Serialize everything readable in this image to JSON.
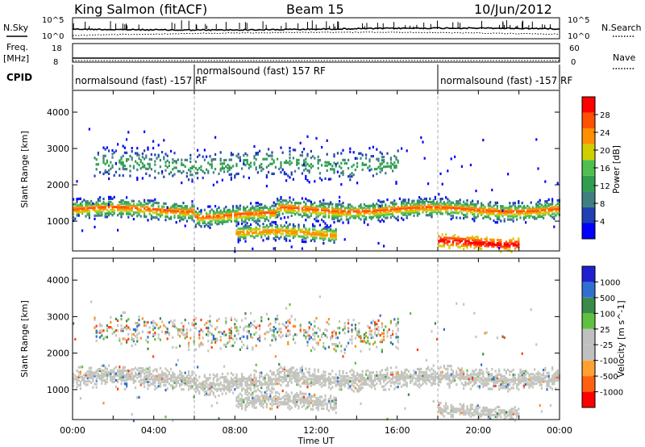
{
  "header": {
    "title": "King Salmon (fitACF)",
    "beam": "Beam 15",
    "date": "10/Jun/2012"
  },
  "strip1": {
    "left_label": "N.Sky",
    "right_label": "N.Search",
    "left_ticks": [
      "10^5",
      "10^0"
    ],
    "right_ticks": [
      "10^5",
      "10^0"
    ]
  },
  "strip2": {
    "left_label_line1": "Freq.",
    "left_label_line2": "[MHz]",
    "right_label": "Nave",
    "left_ticks": [
      "18",
      "8"
    ],
    "right_ticks": [
      "60",
      "0"
    ]
  },
  "cpid": {
    "label": "CPID",
    "segments": [
      {
        "text": "normalsound (fast) -157 RF",
        "start": "00:00",
        "end": "06:00"
      },
      {
        "text": "normalsound (fast) 157 RF",
        "start": "06:00",
        "end": "18:00"
      },
      {
        "text": "normalsound (fast) -157 RF",
        "start": "18:00",
        "end": "24:00"
      }
    ]
  },
  "colors": {
    "scale": [
      "#0000ff",
      "#1f3fb3",
      "#3f7f7f",
      "#2f9f4f",
      "#4fc04f",
      "#cfcf00",
      "#ff8f00",
      "#ff4f00",
      "#ff0000"
    ],
    "velocity_scale": [
      "#2020d0",
      "#2f6fd0",
      "#3a8a4a",
      "#60c040",
      "#c0c0c0",
      "#c0c0c0",
      "#ffa030",
      "#ff6010",
      "#ff0000"
    ],
    "gray": "#c4c4be"
  },
  "chart_data": [
    {
      "type": "heatmap",
      "title": "",
      "ylabel": "Slant Range [km]",
      "xlabel": "",
      "yticks": [
        "1000",
        "2000",
        "3000",
        "4000"
      ],
      "ylim": [
        180,
        4600
      ],
      "x_range_hours": [
        0,
        24
      ],
      "colorbar": {
        "label": "Power [dB]",
        "ticks": [
          "4",
          "8",
          "12",
          "16",
          "20",
          "24",
          "28"
        ],
        "range": [
          0,
          32
        ]
      },
      "bands": [
        {
          "name": "main",
          "start_h": 0,
          "end_h": 24,
          "center_km": 1350,
          "width_km": 300
        },
        {
          "name": "upper",
          "start_h": 1,
          "end_h": 16,
          "center_km": 2600,
          "width_km": 500
        },
        {
          "name": "lower",
          "start_h": 8,
          "end_h": 13,
          "center_km": 700,
          "width_km": 250
        },
        {
          "name": "near",
          "start_h": 18,
          "end_h": 22,
          "center_km": 450,
          "width_km": 200
        }
      ]
    },
    {
      "type": "heatmap",
      "title": "",
      "ylabel": "Slant Range [km]",
      "xlabel": "Time UT",
      "yticks": [
        "1000",
        "2000",
        "3000",
        "4000"
      ],
      "xticks": [
        "00:00",
        "04:00",
        "08:00",
        "12:00",
        "16:00",
        "20:00",
        "00:00"
      ],
      "ylim": [
        180,
        4600
      ],
      "x_range_hours": [
        0,
        24
      ],
      "colorbar": {
        "label": "Velocity [m s^-1]",
        "ticks": [
          "1000",
          "500",
          "100",
          "25",
          "-25",
          "-100",
          "-500",
          "-1000"
        ]
      }
    }
  ]
}
